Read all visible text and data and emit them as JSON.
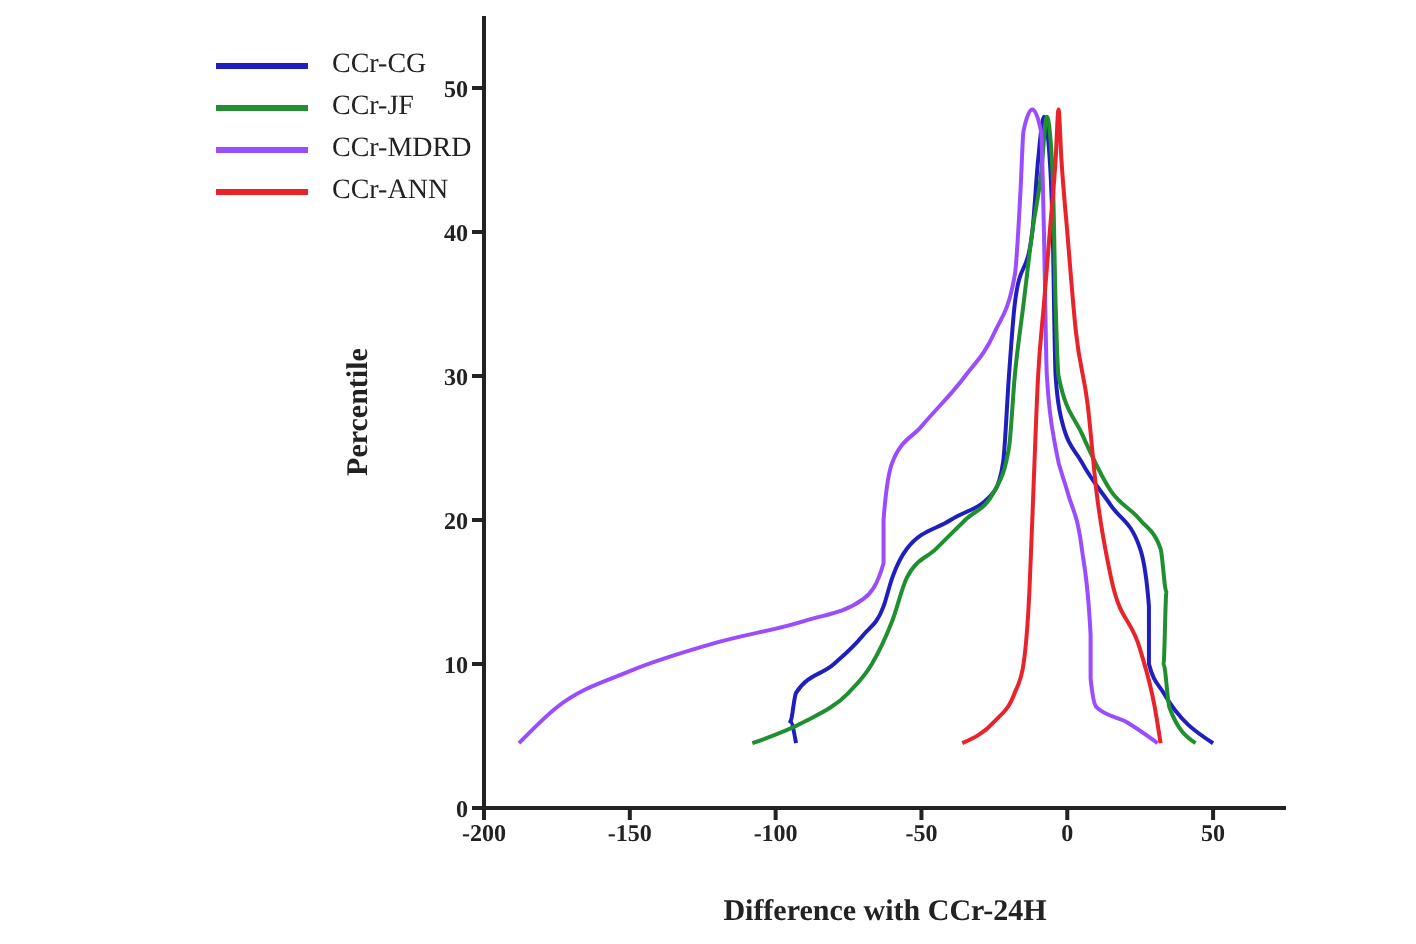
{
  "chart_data": {
    "type": "line",
    "xlabel": "Difference with CCr-24H",
    "ylabel": "Percentile",
    "xlim": [
      -200,
      75
    ],
    "xticks": [
      -200,
      -150,
      -100,
      -50,
      0,
      50
    ],
    "ylim": [
      0,
      55
    ],
    "yticks": [
      0,
      10,
      20,
      30,
      40,
      50
    ],
    "grid": false,
    "legend": "top left",
    "marker": "none",
    "line_style": "solid",
    "series": [
      {
        "name": "CCr-CG",
        "color": "#1f1fbf",
        "x": [
          -93,
          -95,
          -93,
          -80,
          -70,
          -63,
          -60,
          -55,
          -40,
          -25,
          -22,
          -20,
          -18,
          -12,
          -10,
          -8,
          -6,
          -5,
          -4,
          -2,
          5,
          15,
          25,
          28,
          28,
          33,
          50
        ],
        "values": [
          4.5,
          6,
          8,
          10,
          12,
          14,
          16,
          18,
          20,
          22,
          24,
          30,
          35,
          40,
          45,
          48,
          45,
          40,
          30,
          27,
          24,
          21,
          18,
          14,
          10,
          8,
          4.5
        ]
      },
      {
        "name": "CCr-JF",
        "color": "#1f8f2f",
        "x": [
          -108,
          -90,
          -75,
          -67,
          -60,
          -55,
          -45,
          -35,
          -25,
          -20,
          -18,
          -15,
          -12,
          -9,
          -7,
          -5,
          -4,
          -3,
          5,
          15,
          25,
          32,
          34,
          33,
          35,
          44
        ],
        "values": [
          4.5,
          6,
          8,
          10,
          13,
          16,
          18,
          20,
          22,
          25,
          30,
          35,
          40,
          44,
          48,
          44,
          35,
          30,
          26,
          22,
          20,
          18,
          15,
          10,
          7,
          4.5
        ]
      },
      {
        "name": "CCr-MDRD",
        "color": "#9a4dff",
        "x": [
          -188,
          -175,
          -150,
          -120,
          -90,
          -70,
          -63,
          -63,
          -60,
          -50,
          -35,
          -25,
          -18,
          -16,
          -15,
          -12,
          -9,
          -8,
          -7,
          -4,
          0,
          5,
          8,
          8,
          10,
          20,
          31
        ],
        "values": [
          4.5,
          7,
          9.5,
          11.5,
          13,
          14.5,
          17,
          20,
          24,
          26.5,
          30,
          33,
          37,
          43,
          47,
          48.5,
          47,
          40,
          30,
          25,
          22,
          18,
          12,
          9,
          7,
          6,
          4.5
        ]
      },
      {
        "name": "CCr-ANN",
        "color": "#e8232a",
        "x": [
          -36,
          -25,
          -18,
          -15,
          -13,
          -12,
          -10,
          -8,
          -6,
          -4,
          -3,
          -2,
          0,
          3,
          7,
          10,
          15,
          25,
          30,
          32
        ],
        "values": [
          4.5,
          6,
          8,
          10,
          15,
          20,
          30,
          35,
          40,
          45,
          48.5,
          45,
          40,
          33,
          28,
          22,
          16,
          11,
          7,
          4.5
        ]
      }
    ]
  }
}
